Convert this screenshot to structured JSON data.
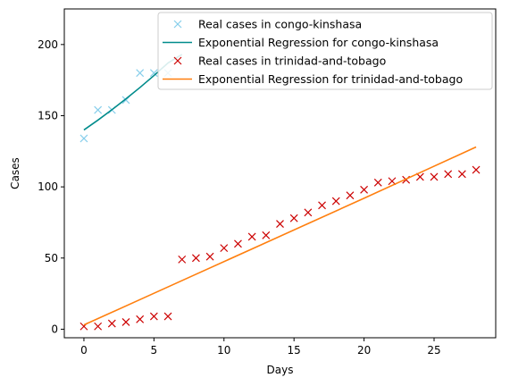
{
  "chart_data": {
    "type": "line",
    "title": "",
    "xlabel": "Days",
    "ylabel": "Cases",
    "xlim": [
      -1.4,
      29.4
    ],
    "ylim": [
      -6,
      225
    ],
    "xticks": [
      0,
      5,
      10,
      15,
      20,
      25
    ],
    "yticks": [
      0,
      50,
      100,
      150,
      200
    ],
    "grid": false,
    "legend_position": "top-right",
    "series": [
      {
        "name": "Real cases in congo-kinshasa",
        "kind": "scatter",
        "marker": "x",
        "color": "#87ceeb",
        "x": [
          0,
          1,
          2,
          3,
          4,
          5,
          6
        ],
        "y": [
          134,
          154,
          154,
          161,
          180,
          180,
          180
        ]
      },
      {
        "name": "Exponential Regression for congo-kinshasa",
        "kind": "line",
        "color": "#008b8b",
        "x": [
          0,
          1,
          2,
          3,
          4,
          5,
          6,
          7
        ],
        "y": [
          140,
          146.9,
          154.2,
          161.8,
          169.8,
          178.2,
          187,
          193
        ]
      },
      {
        "name": "Real cases in trinidad-and-tobago",
        "kind": "scatter",
        "marker": "x",
        "color": "#cc0000",
        "x": [
          0,
          1,
          2,
          3,
          4,
          5,
          6,
          7,
          8,
          9,
          10,
          11,
          12,
          13,
          14,
          15,
          16,
          17,
          18,
          19,
          20,
          21,
          22,
          23,
          24,
          25,
          26,
          27,
          28
        ],
        "y": [
          2,
          2,
          4,
          5,
          7,
          9,
          9,
          49,
          50,
          51,
          57,
          60,
          65,
          66,
          74,
          78,
          82,
          87,
          90,
          94,
          98,
          103,
          104,
          105,
          107,
          107,
          109,
          109,
          112
        ]
      },
      {
        "name": "Exponential Regression for trinidad-and-tobago",
        "kind": "line",
        "color": "#ff7f0e",
        "x": [
          0,
          4,
          8,
          12,
          16,
          20,
          24,
          28
        ],
        "y": [
          3,
          20.8,
          38.6,
          56.4,
          74.2,
          92,
          110,
          128
        ]
      }
    ]
  }
}
